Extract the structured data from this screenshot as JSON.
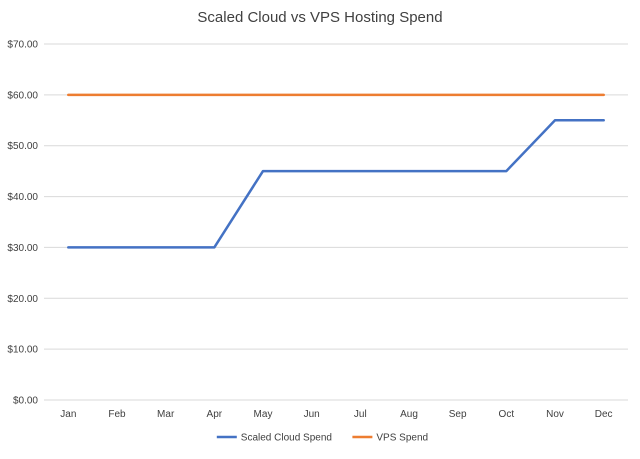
{
  "chart_data": {
    "type": "line",
    "title": "Scaled Cloud vs VPS Hosting Spend",
    "xlabel": "",
    "ylabel": "",
    "categories": [
      "Jan",
      "Feb",
      "Mar",
      "Apr",
      "May",
      "Jun",
      "Jul",
      "Aug",
      "Sep",
      "Oct",
      "Nov",
      "Dec"
    ],
    "series": [
      {
        "name": "Scaled Cloud Spend",
        "color": "#4472c4",
        "values": [
          30,
          30,
          30,
          30,
          45,
          45,
          45,
          45,
          45,
          45,
          55,
          55
        ]
      },
      {
        "name": "VPS Spend",
        "color": "#ed7d31",
        "values": [
          60,
          60,
          60,
          60,
          60,
          60,
          60,
          60,
          60,
          60,
          60,
          60
        ]
      }
    ],
    "ylim": [
      0,
      70
    ],
    "yticks": [
      0,
      10,
      20,
      30,
      40,
      50,
      60,
      70
    ],
    "ytick_labels": [
      "$0.00",
      "$10.00",
      "$20.00",
      "$30.00",
      "$40.00",
      "$50.00",
      "$60.00",
      "$70.00"
    ],
    "grid": true,
    "legend_position": "bottom"
  }
}
